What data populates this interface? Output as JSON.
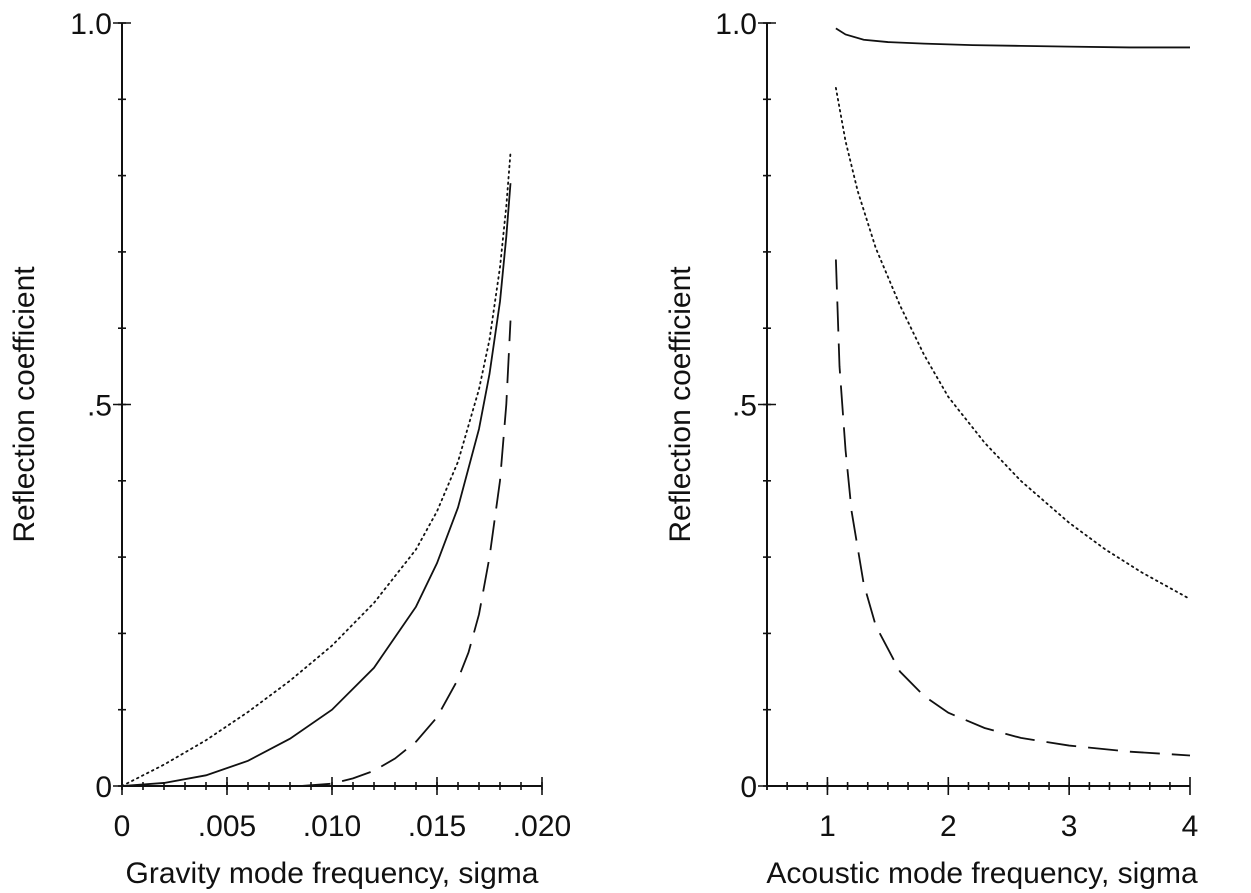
{
  "chart_data": [
    {
      "type": "line",
      "title": "",
      "xlabel": "Gravity mode frequency, sigma",
      "ylabel": "Reflection coefficient",
      "xlim": [
        0,
        0.02
      ],
      "ylim": [
        0,
        1.0
      ],
      "x_ticks": [
        0,
        0.005,
        0.01,
        0.015,
        0.02
      ],
      "x_tick_labels": [
        "0",
        ".005",
        ".010",
        ".015",
        ".020"
      ],
      "x_minor_step": 0.001,
      "y_ticks": [
        0,
        0.5,
        1.0
      ],
      "y_tick_labels": [
        "0",
        ".5",
        "1.0"
      ],
      "y_minor_step": 0.1,
      "grid": false,
      "legend": "none",
      "series": [
        {
          "style": "solid",
          "x": [
            0,
            0.002,
            0.004,
            0.006,
            0.008,
            0.01,
            0.012,
            0.014,
            0.015,
            0.016,
            0.017,
            0.0175,
            0.018,
            0.0183,
            0.0185
          ],
          "y": [
            0,
            0.004,
            0.014,
            0.033,
            0.062,
            0.1,
            0.155,
            0.235,
            0.292,
            0.365,
            0.468,
            0.54,
            0.635,
            0.72,
            0.79
          ]
        },
        {
          "style": "dotted",
          "x": [
            0,
            0.002,
            0.004,
            0.006,
            0.008,
            0.01,
            0.012,
            0.014,
            0.015,
            0.016,
            0.017,
            0.0175,
            0.018,
            0.0183,
            0.0185
          ],
          "y": [
            0,
            0.028,
            0.06,
            0.097,
            0.138,
            0.184,
            0.24,
            0.31,
            0.36,
            0.425,
            0.52,
            0.585,
            0.68,
            0.76,
            0.83
          ]
        },
        {
          "style": "dashed",
          "x": [
            0.0085,
            0.01,
            0.011,
            0.012,
            0.013,
            0.014,
            0.015,
            0.016,
            0.0165,
            0.017,
            0.0175,
            0.018,
            0.0183,
            0.0185
          ],
          "y": [
            0,
            0.003,
            0.01,
            0.02,
            0.036,
            0.058,
            0.09,
            0.14,
            0.175,
            0.225,
            0.3,
            0.4,
            0.5,
            0.61
          ]
        }
      ]
    },
    {
      "type": "line",
      "title": "",
      "xlabel": "Acoustic mode frequency, sigma",
      "ylabel": "Reflection coefficient",
      "xlim": [
        0.5,
        4
      ],
      "ylim": [
        0,
        1.0
      ],
      "x_ticks": [
        1,
        2,
        3,
        4
      ],
      "x_tick_labels": [
        "1",
        "2",
        "3",
        "4"
      ],
      "x_minor_step": 0.1667,
      "y_ticks": [
        0,
        0.5,
        1.0
      ],
      "y_tick_labels": [
        "0",
        ".5",
        "1.0"
      ],
      "y_minor_step": 0.1,
      "grid": false,
      "legend": "none",
      "series": [
        {
          "style": "solid",
          "x": [
            1.07,
            1.15,
            1.3,
            1.5,
            1.8,
            2.2,
            2.6,
            3.0,
            3.5,
            4.0
          ],
          "y": [
            0.993,
            0.985,
            0.978,
            0.975,
            0.973,
            0.971,
            0.97,
            0.969,
            0.968,
            0.968
          ]
        },
        {
          "style": "dotted",
          "x": [
            1.07,
            1.15,
            1.25,
            1.4,
            1.6,
            1.8,
            2.0,
            2.3,
            2.6,
            3.0,
            3.3,
            3.6,
            4.0
          ],
          "y": [
            0.915,
            0.845,
            0.78,
            0.705,
            0.63,
            0.565,
            0.51,
            0.45,
            0.4,
            0.345,
            0.31,
            0.28,
            0.245
          ]
        },
        {
          "style": "dashed",
          "x": [
            1.07,
            1.1,
            1.15,
            1.2,
            1.3,
            1.4,
            1.6,
            1.8,
            2.0,
            2.3,
            2.6,
            3.0,
            3.5,
            4.0
          ],
          "y": [
            0.69,
            0.55,
            0.44,
            0.36,
            0.265,
            0.21,
            0.15,
            0.118,
            0.096,
            0.076,
            0.063,
            0.053,
            0.045,
            0.04
          ]
        }
      ]
    }
  ]
}
